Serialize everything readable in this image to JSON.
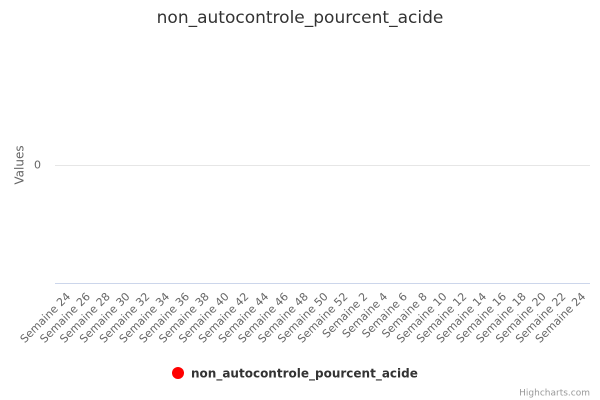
{
  "chart_data": {
    "type": "line",
    "title": "non_autocontrole_pourcent_acide",
    "y_label": "Values",
    "credits": "Highcharts.com",
    "categories": [
      "Semaine 24",
      "Semaine 26",
      "Semaine 28",
      "Semaine 30",
      "Semaine 32",
      "Semaine 34",
      "Semaine 36",
      "Semaine 38",
      "Semaine 40",
      "Semaine 42",
      "Semaine 44",
      "Semaine 46",
      "Semaine 48",
      "Semaine 50",
      "Semaine 52",
      "Semaine 2",
      "Semaine 4",
      "Semaine 6",
      "Semaine 8",
      "Semaine 10",
      "Semaine 12",
      "Semaine 14",
      "Semaine 16",
      "Semaine 18",
      "Semaine 20",
      "Semaine 22",
      "Semaine 24"
    ],
    "series": [
      {
        "name": "non_autocontrole_pourcent_acide",
        "color": "#ff0000",
        "values": [
          null,
          null,
          null,
          null,
          null,
          null,
          null,
          null,
          null,
          null,
          null,
          null,
          null,
          null,
          null,
          null,
          null,
          null,
          null,
          null,
          null,
          null,
          null,
          null,
          null,
          null,
          null
        ]
      }
    ],
    "ylim": [
      -1,
      1
    ],
    "yticks": [
      0
    ],
    "grid": true
  }
}
